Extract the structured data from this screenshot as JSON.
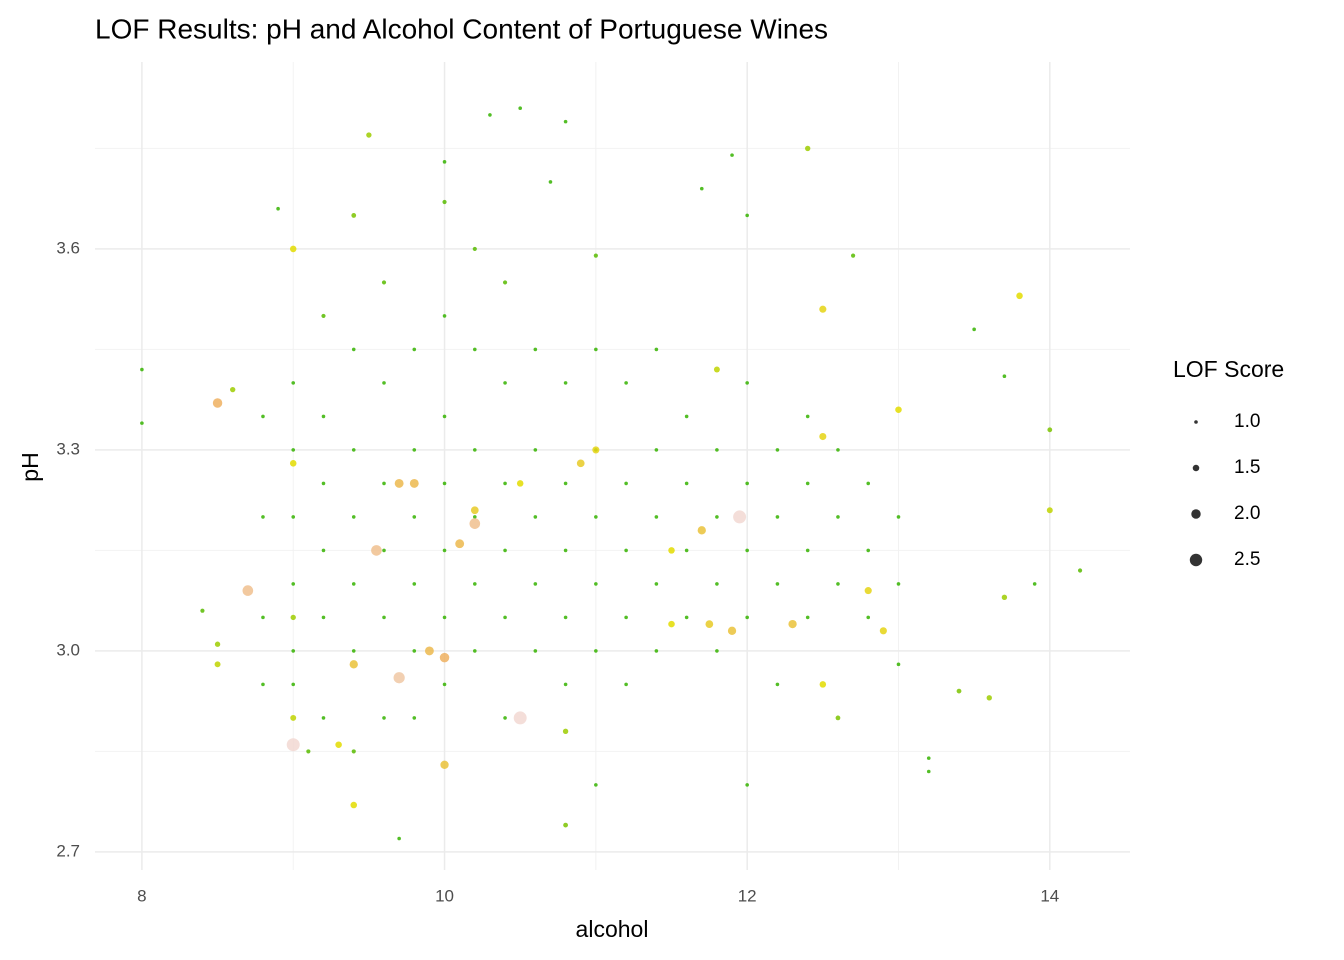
{
  "chart_data": {
    "type": "scatter",
    "title": "LOF Results: pH and Alcohol Content of Portuguese Wines",
    "x_label": "alcohol",
    "y_label": "pH",
    "legend_title": "LOF Score",
    "xlim": [
      7.69,
      14.53
    ],
    "xticks": [
      8,
      10,
      12,
      14
    ],
    "ylim": [
      2.673,
      3.879
    ],
    "yticks": [
      {
        "value": 2.7,
        "label": "2.7"
      },
      {
        "value": 3.0,
        "label": "3.0"
      },
      {
        "value": 3.3,
        "label": "3.3"
      },
      {
        "value": 3.6,
        "label": "3.6"
      }
    ],
    "size_ticks": [
      {
        "value": 1.0,
        "label": "1.0"
      },
      {
        "value": 1.5,
        "label": "1.5"
      },
      {
        "value": 2.0,
        "label": "2.0"
      },
      {
        "value": 2.5,
        "label": "2.5"
      }
    ],
    "palette": [
      "#35b300",
      "#e3dc00",
      "#eeb060",
      "#f2d8d2"
    ],
    "grid": true,
    "legend": "right",
    "x": [
      8.8,
      8.8,
      8.8,
      8.8,
      9.0,
      9.0,
      9.0,
      9.0,
      9.0,
      9.0,
      9.2,
      9.2,
      9.2,
      9.2,
      9.2,
      9.2,
      9.4,
      9.4,
      9.4,
      9.4,
      9.4,
      9.4,
      9.6,
      9.6,
      9.6,
      9.6,
      9.6,
      9.6,
      9.8,
      9.8,
      9.8,
      9.8,
      9.8,
      9.8,
      10.0,
      10.0,
      10.0,
      10.0,
      10.0,
      10.0,
      10.2,
      10.2,
      10.2,
      10.2,
      10.2,
      10.2,
      10.4,
      10.4,
      10.4,
      10.4,
      10.4,
      10.4,
      10.6,
      10.6,
      10.6,
      10.6,
      10.6,
      10.8,
      10.8,
      10.8,
      10.8,
      10.8,
      11.0,
      11.0,
      11.0,
      11.0,
      11.0,
      11.2,
      11.2,
      11.2,
      11.2,
      11.2,
      11.4,
      11.4,
      11.4,
      11.4,
      11.4,
      11.6,
      11.6,
      11.6,
      11.6,
      11.8,
      11.8,
      11.8,
      11.8,
      12.0,
      12.0,
      12.0,
      12.0,
      12.2,
      12.2,
      12.2,
      12.2,
      12.4,
      12.4,
      12.4,
      12.4,
      12.6,
      12.6,
      12.6,
      12.8,
      12.8,
      12.8,
      13.0,
      13.0,
      13.0,
      8.0,
      8.0,
      8.5,
      8.6,
      8.7,
      8.5,
      8.5,
      8.4,
      8.9,
      9.0,
      9.0,
      9.0,
      9.0,
      9.0,
      9.1,
      9.3,
      9.4,
      9.4,
      9.4,
      9.5,
      9.55,
      9.7,
      9.7,
      9.7,
      9.8,
      9.9,
      10.0,
      10.0,
      10.0,
      10.0,
      10.1,
      10.2,
      10.2,
      10.3,
      10.5,
      10.5,
      10.5,
      10.7,
      10.8,
      10.8,
      10.8,
      10.9,
      11.0,
      11.0,
      11.0,
      11.5,
      11.5,
      11.7,
      11.7,
      11.75,
      11.8,
      11.9,
      11.9,
      11.95,
      12.0,
      12.0,
      12.3,
      12.4,
      12.5,
      12.5,
      12.5,
      12.6,
      12.7,
      12.8,
      12.9,
      13.0,
      13.2,
      13.2,
      13.4,
      13.6,
      13.7,
      13.8,
      13.9,
      14.0,
      14.0,
      14.2,
      13.5,
      13.7
    ],
    "y": [
      3.05,
      3.2,
      3.35,
      2.95,
      3.1,
      3.2,
      3.3,
      3.0,
      3.4,
      2.95,
      3.15,
      3.25,
      3.05,
      3.35,
      2.9,
      3.5,
      3.1,
      3.2,
      3.3,
      3.0,
      3.45,
      2.85,
      3.15,
      3.25,
      3.05,
      3.4,
      2.9,
      3.55,
      3.1,
      3.2,
      3.3,
      3.0,
      3.45,
      2.9,
      3.15,
      3.25,
      3.05,
      3.35,
      3.5,
      2.95,
      3.1,
      3.2,
      3.3,
      3.0,
      3.45,
      3.6,
      3.15,
      3.25,
      3.05,
      3.4,
      2.9,
      3.55,
      3.1,
      3.2,
      3.3,
      3.0,
      3.45,
      3.15,
      3.25,
      3.05,
      3.4,
      2.95,
      3.1,
      3.2,
      3.3,
      3.0,
      3.45,
      3.15,
      3.25,
      3.05,
      3.4,
      2.95,
      3.1,
      3.2,
      3.3,
      3.0,
      3.45,
      3.15,
      3.25,
      3.05,
      3.35,
      3.1,
      3.2,
      3.3,
      3.0,
      3.15,
      3.25,
      3.05,
      3.4,
      3.1,
      3.2,
      3.3,
      2.95,
      3.15,
      3.25,
      3.05,
      3.35,
      3.1,
      3.2,
      3.3,
      3.15,
      3.25,
      3.05,
      3.1,
      3.2,
      2.98,
      3.42,
      3.34,
      3.37,
      3.39,
      3.09,
      2.98,
      3.01,
      3.06,
      3.66,
      3.6,
      3.28,
      3.05,
      2.9,
      2.86,
      2.85,
      2.86,
      2.77,
      2.98,
      3.65,
      3.77,
      3.15,
      3.25,
      2.96,
      2.72,
      3.25,
      3.0,
      2.99,
      2.83,
      3.67,
      3.73,
      3.16,
      3.19,
      3.21,
      3.8,
      2.9,
      3.81,
      3.25,
      3.7,
      3.79,
      2.74,
      2.88,
      3.28,
      3.3,
      3.59,
      2.8,
      3.15,
      3.04,
      3.18,
      3.69,
      3.04,
      3.42,
      3.74,
      3.03,
      3.2,
      3.65,
      2.8,
      3.04,
      3.75,
      3.51,
      3.32,
      2.95,
      2.9,
      3.59,
      3.09,
      3.03,
      3.36,
      2.84,
      2.82,
      2.94,
      2.93,
      3.08,
      3.53,
      3.1,
      3.21,
      3.33,
      3.12,
      3.48,
      3.41
    ],
    "sizes": [
      1,
      1,
      1,
      1,
      1,
      1,
      1,
      1,
      1,
      1,
      1,
      1,
      1,
      1,
      1,
      1.1,
      1,
      1,
      1,
      1,
      1,
      1.1,
      1,
      1,
      1,
      1,
      1,
      1.1,
      1,
      1,
      1,
      1,
      1,
      1,
      1,
      1,
      1,
      1,
      1,
      1,
      1,
      1,
      1,
      1,
      1,
      1.1,
      1,
      1,
      1,
      1,
      1,
      1.1,
      1,
      1,
      1,
      1,
      1,
      1,
      1,
      1,
      1,
      1,
      1,
      1,
      1,
      1,
      1,
      1,
      1,
      1,
      1,
      1,
      1,
      1,
      1,
      1,
      1,
      1,
      1,
      1,
      1,
      1,
      1,
      1,
      1,
      1,
      1,
      1,
      1,
      1,
      1,
      1,
      1,
      1,
      1,
      1,
      1,
      1,
      1,
      1,
      1,
      1,
      1,
      1,
      1,
      1,
      1.0,
      1.0,
      2.0,
      1.3,
      2.2,
      1.4,
      1.3,
      1.1,
      1.0,
      1.5,
      1.5,
      1.3,
      1.4,
      2.6,
      1.1,
      1.5,
      1.5,
      1.8,
      1.2,
      1.3,
      2.2,
      1.9,
      2.3,
      1.0,
      1.9,
      1.9,
      2.0,
      1.8,
      1.1,
      1.0,
      1.9,
      2.2,
      1.7,
      1.0,
      2.6,
      1.0,
      1.5,
      1.0,
      1.0,
      1.2,
      1.3,
      1.7,
      1.6,
      1.1,
      1.0,
      1.5,
      1.5,
      1.8,
      1.0,
      1.7,
      1.4,
      1.0,
      1.8,
      2.6,
      1.0,
      1.0,
      1.8,
      1.3,
      1.6,
      1.6,
      1.5,
      1.2,
      1.1,
      1.6,
      1.6,
      1.5,
      1.0,
      1.0,
      1.2,
      1.3,
      1.3,
      1.5,
      1.0,
      1.4,
      1.2,
      1.1,
      1.0,
      1.0
    ]
  }
}
